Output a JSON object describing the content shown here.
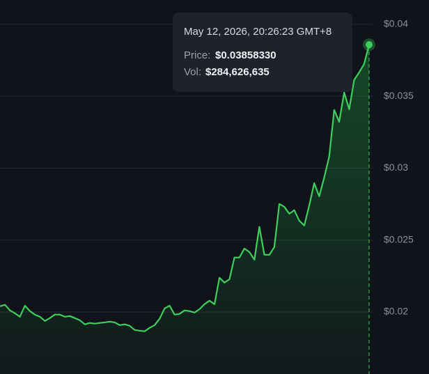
{
  "chart_data": {
    "type": "area-line",
    "values": [
      0.0204,
      0.0205,
      0.02011,
      0.01991,
      0.01967,
      0.02044,
      0.02006,
      0.01982,
      0.01967,
      0.01938,
      0.01958,
      0.01982,
      0.01982,
      0.01967,
      0.01972,
      0.01958,
      0.01943,
      0.01914,
      0.01924,
      0.01919,
      0.01924,
      0.01928,
      0.01933,
      0.01928,
      0.01909,
      0.01914,
      0.01904,
      0.01875,
      0.0187,
      0.01866,
      0.0189,
      0.01909,
      0.01953,
      0.02025,
      0.02044,
      0.01982,
      0.01987,
      0.02011,
      0.02006,
      0.01996,
      0.0202,
      0.02054,
      0.02079,
      0.02054,
      0.02238,
      0.02204,
      0.02228,
      0.02379,
      0.02379,
      0.02441,
      0.02417,
      0.02364,
      0.02592,
      0.02398,
      0.02398,
      0.02451,
      0.02751,
      0.02732,
      0.02683,
      0.02708,
      0.02635,
      0.02601,
      0.02742,
      0.02896,
      0.02804,
      0.02935,
      0.0308,
      0.03405,
      0.03322,
      0.03526,
      0.0341,
      0.03613,
      0.03666,
      0.03724,
      0.0385833
    ],
    "color": "#3ecf5c",
    "ylim": [
      0.01569,
      0.04169
    ],
    "yticks": [
      {
        "value": 0.02,
        "label": "$0.02"
      },
      {
        "value": 0.025,
        "label": "$0.025"
      },
      {
        "value": 0.03,
        "label": "$0.03"
      },
      {
        "value": 0.035,
        "label": "$0.035"
      },
      {
        "value": 0.04,
        "label": "$0.04"
      }
    ],
    "grid": true,
    "tooltip": {
      "date": "May 12, 2026, 20:26:23 GMT+8",
      "price_label": "Price:",
      "price": "$0.03858330",
      "vol_label": "Vol:",
      "vol": "$284,626,635"
    }
  }
}
